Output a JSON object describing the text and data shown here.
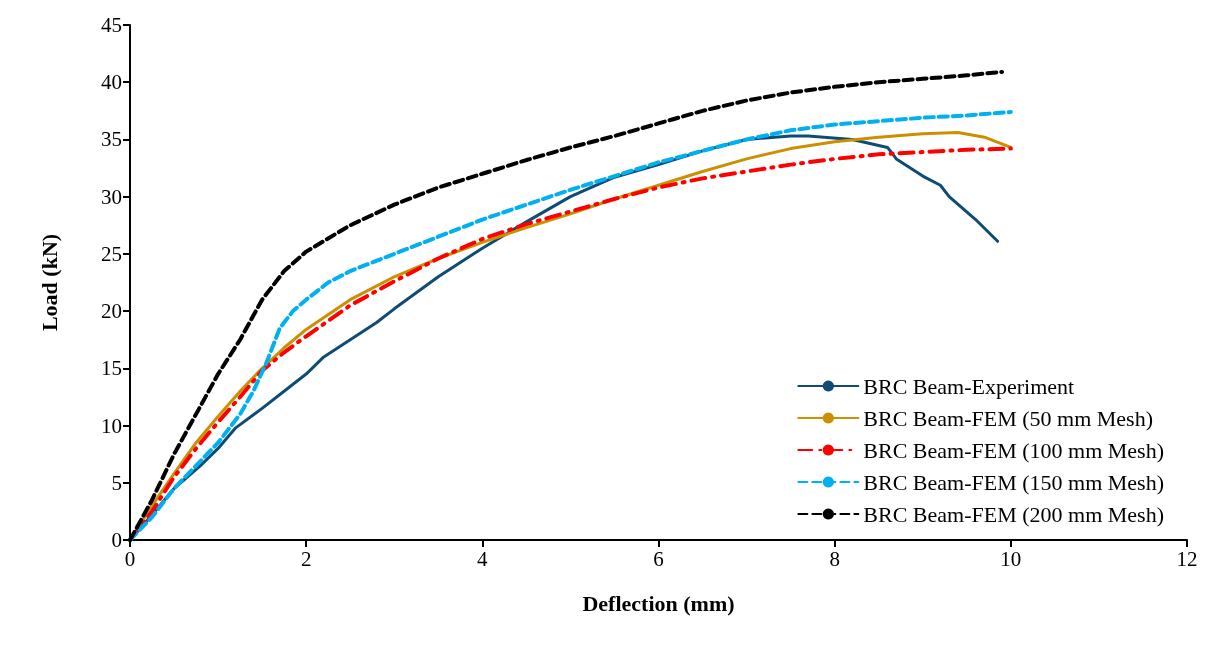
{
  "chart_data": {
    "type": "line",
    "xlabel": "Deflection (mm)",
    "ylabel": "Load (kN)",
    "xlim": [
      0,
      12
    ],
    "xticks": [
      0,
      2,
      4,
      6,
      8,
      10,
      12
    ],
    "ylim": [
      0,
      45
    ],
    "yticks": [
      0,
      5,
      10,
      15,
      20,
      25,
      30,
      35,
      40,
      45
    ],
    "grid": false,
    "legend": "bottom right",
    "marker": "none",
    "series": [
      {
        "name": "BRC Beam-Experiment",
        "color": "#0f4c75",
        "line_style": "solid",
        "x": [
          0,
          0.25,
          0.5,
          0.8,
          1.0,
          1.2,
          1.5,
          1.8,
          2.0,
          2.2,
          2.5,
          2.8,
          3.0,
          3.5,
          4.0,
          4.5,
          5.0,
          5.5,
          6.0,
          6.5,
          7.0,
          7.5,
          7.7,
          8.2,
          8.6,
          8.7,
          9.0,
          9.2,
          9.3,
          9.6,
          9.85
        ],
        "values": [
          0,
          2.2,
          4.5,
          6.5,
          8,
          9.8,
          11.5,
          13.3,
          14.5,
          16,
          17.5,
          19,
          20.2,
          23,
          25.5,
          27.8,
          30,
          31.7,
          32.8,
          34,
          35,
          35.3,
          35.3,
          35,
          34.3,
          33.3,
          31.8,
          31,
          30,
          28,
          26.1
        ]
      },
      {
        "name": "BRC Beam-FEM (50 mm Mesh)",
        "color": "#cc8f00",
        "line_style": "solid",
        "x": [
          0,
          0.25,
          0.5,
          0.75,
          1.0,
          1.25,
          1.5,
          1.75,
          2.0,
          2.5,
          3.0,
          3.5,
          4.0,
          4.5,
          5.0,
          5.5,
          6.0,
          6.5,
          7.0,
          7.5,
          8.0,
          8.5,
          9.0,
          9.4,
          9.7,
          10
        ],
        "values": [
          0,
          3,
          5.8,
          8.5,
          10.8,
          13,
          15,
          16.8,
          18.4,
          21,
          23,
          24.6,
          26,
          27.3,
          28.5,
          29.8,
          31,
          32.2,
          33.3,
          34.2,
          34.8,
          35.2,
          35.5,
          35.6,
          35.2,
          34.3
        ]
      },
      {
        "name": "BRC Beam-FEM (100 mm Mesh)",
        "color": "#ff0000",
        "line_style": "dashdot",
        "x": [
          0,
          0.25,
          0.5,
          0.75,
          1.0,
          1.25,
          1.5,
          1.75,
          2.0,
          2.5,
          3.0,
          3.5,
          4.0,
          4.5,
          5.0,
          5.5,
          6.0,
          6.5,
          7.0,
          7.5,
          8.0,
          8.5,
          9.0,
          9.5,
          10
        ],
        "values": [
          0,
          2.5,
          5.5,
          8,
          10.3,
          12.5,
          14.8,
          16.4,
          17.8,
          20.5,
          22.6,
          24.6,
          26.3,
          27.6,
          28.7,
          29.8,
          30.8,
          31.6,
          32.2,
          32.8,
          33.3,
          33.7,
          33.9,
          34.1,
          34.2
        ]
      },
      {
        "name": "BRC Beam-FEM (150 mm Mesh)",
        "color": "#00b0f0",
        "line_style": "dashed",
        "x": [
          0,
          0.25,
          0.5,
          0.75,
          1.0,
          1.25,
          1.4,
          1.55,
          1.7,
          1.85,
          2.0,
          2.25,
          2.5,
          3.0,
          3.5,
          4.0,
          4.5,
          5.0,
          5.5,
          6.0,
          6.5,
          7.0,
          7.5,
          8.0,
          8.5,
          9.0,
          9.5,
          10
        ],
        "values": [
          0,
          2,
          4.5,
          6.5,
          8.5,
          11,
          13,
          15.5,
          18.5,
          20,
          21,
          22.5,
          23.5,
          25,
          26.5,
          28,
          29.3,
          30.6,
          31.8,
          33,
          34,
          35,
          35.8,
          36.3,
          36.6,
          36.9,
          37.1,
          37.4
        ]
      },
      {
        "name": "BRC Beam-FEM (200 mm Mesh)",
        "color": "#000000",
        "line_style": "dashed",
        "x": [
          0,
          0.25,
          0.5,
          0.75,
          1.0,
          1.25,
          1.5,
          1.75,
          2.0,
          2.5,
          3.0,
          3.5,
          4.0,
          4.5,
          5.0,
          5.5,
          6.0,
          6.5,
          7.0,
          7.5,
          8.0,
          8.5,
          9.0,
          9.5,
          9.9
        ],
        "values": [
          0,
          3.5,
          7.5,
          11,
          14.5,
          17.5,
          21,
          23.5,
          25.2,
          27.5,
          29.3,
          30.8,
          32,
          33.2,
          34.3,
          35.3,
          36.4,
          37.5,
          38.4,
          39.1,
          39.6,
          40,
          40.3,
          40.6,
          40.9
        ]
      }
    ]
  }
}
